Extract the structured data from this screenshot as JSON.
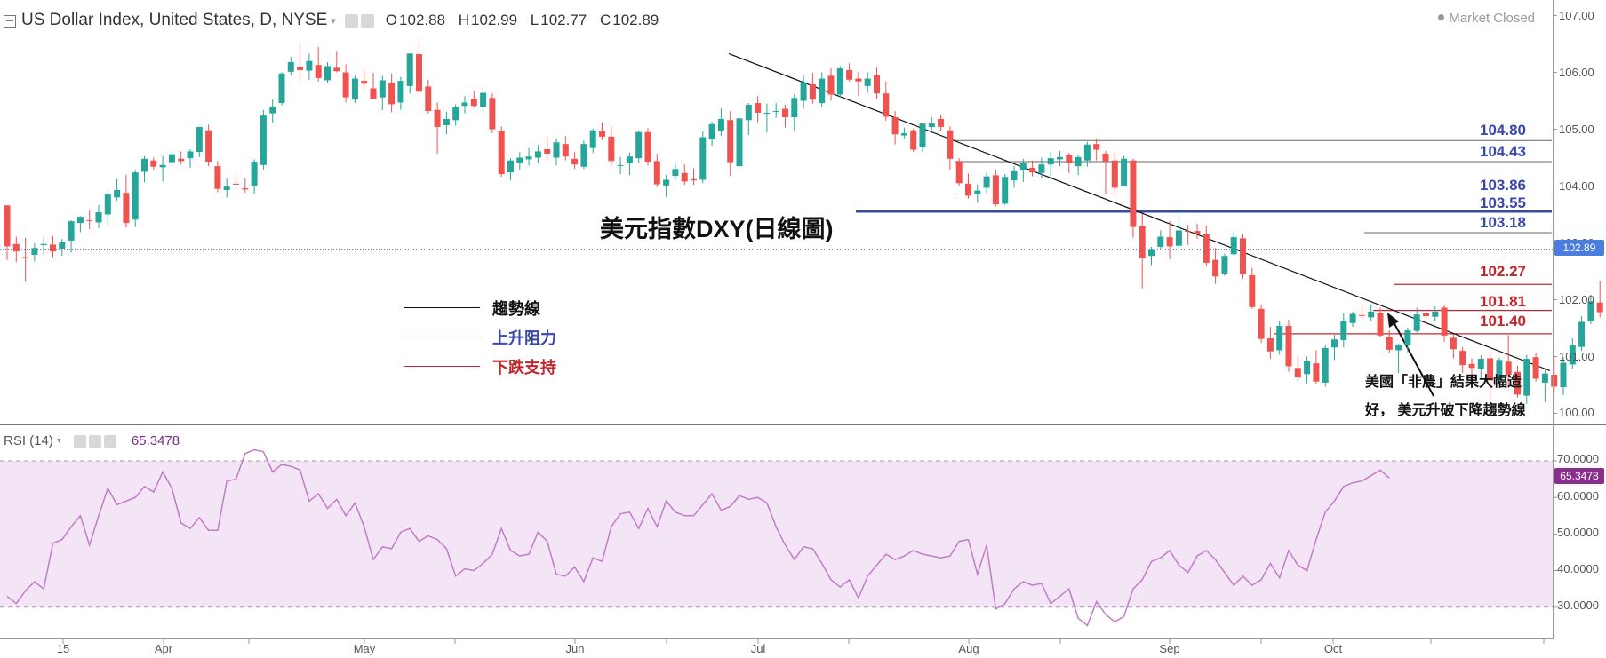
{
  "header": {
    "symbol": "US Dollar Index, United States, D, NYSE",
    "ohlc": [
      {
        "k": "O",
        "v": "102.88"
      },
      {
        "k": "H",
        "v": "102.99"
      },
      {
        "k": "L",
        "v": "102.77"
      },
      {
        "k": "C",
        "v": "102.89"
      }
    ],
    "market_status": "Market Closed"
  },
  "annotation_title": "美元指數DXY(日線圖)",
  "legend": [
    {
      "label": "趨勢線",
      "color": "#111111"
    },
    {
      "label": "上升阻力",
      "color": "#3a49a8"
    },
    {
      "label": "下跌支持",
      "color": "#c0282d"
    }
  ],
  "note": {
    "line1": "美國「非農」結果大幅造",
    "line2": "好， 美元升破下降趨勢線"
  },
  "resistance_levels": [
    "104.80",
    "104.43",
    "103.86",
    "103.55",
    "103.18"
  ],
  "support_levels": [
    "102.27",
    "101.81",
    "101.40"
  ],
  "current_price_tag": "102.89",
  "rsi": {
    "label": "RSI (14)",
    "value": "65.3478",
    "ticks": [
      "70.0000",
      "60.0000",
      "50.0000",
      "40.0000",
      "30.0000"
    ]
  },
  "price_axis_ticks": [
    "107.00",
    "106.00",
    "105.00",
    "104.00",
    "103.00",
    "102.00",
    "101.00",
    "100.00"
  ],
  "x_axis_ticks": [
    "15",
    "Apr",
    "May",
    "Jun",
    "Jul",
    "Aug",
    "Sep",
    "Oct"
  ],
  "colors": {
    "up": "#26a69a",
    "down": "#ef5350",
    "resistance": "#3a49a8",
    "support": "#c0282d",
    "rsi_line": "#c27bc9",
    "rsi_band": "#f3e5f5",
    "rsi_tag": "#8b2d8f",
    "price_tag": "#4a7dde"
  },
  "chart_data": {
    "type": "candlestick",
    "price_range": [
      99.8,
      107.1
    ],
    "ohlc_estimated": [
      [
        103.66,
        103.66,
        102.7,
        102.94
      ],
      [
        102.98,
        103.11,
        102.66,
        102.85
      ],
      [
        102.75,
        103.09,
        102.32,
        102.73
      ],
      [
        102.79,
        102.99,
        102.67,
        102.91
      ],
      [
        102.96,
        103.11,
        102.79,
        102.98
      ],
      [
        102.97,
        103.12,
        102.75,
        102.85
      ],
      [
        102.9,
        103.07,
        102.77,
        103.01
      ],
      [
        103.04,
        103.4,
        102.83,
        103.38
      ],
      [
        103.35,
        103.47,
        103.19,
        103.46
      ],
      [
        103.4,
        103.57,
        103.24,
        103.39
      ],
      [
        103.36,
        103.67,
        103.26,
        103.54
      ],
      [
        103.5,
        103.93,
        103.31,
        103.85
      ],
      [
        103.8,
        104.12,
        103.74,
        103.93
      ],
      [
        103.88,
        104.2,
        103.27,
        103.35
      ],
      [
        103.41,
        104.27,
        103.28,
        104.24
      ],
      [
        104.25,
        104.53,
        104.07,
        104.48
      ],
      [
        104.45,
        104.5,
        104.27,
        104.34
      ],
      [
        104.33,
        104.53,
        104.08,
        104.37
      ],
      [
        104.42,
        104.62,
        104.35,
        104.56
      ],
      [
        104.48,
        104.61,
        104.38,
        104.44
      ],
      [
        104.49,
        104.65,
        104.32,
        104.61
      ],
      [
        104.6,
        105.04,
        104.51,
        105.04
      ],
      [
        104.98,
        105.08,
        104.35,
        104.43
      ],
      [
        104.35,
        104.44,
        103.89,
        103.95
      ],
      [
        103.93,
        104.13,
        103.8,
        103.99
      ],
      [
        104.04,
        104.22,
        103.94,
        104.03
      ],
      [
        103.96,
        104.14,
        103.88,
        103.94
      ],
      [
        104.01,
        104.47,
        103.86,
        104.43
      ],
      [
        104.37,
        105.34,
        104.29,
        105.24
      ],
      [
        105.28,
        105.52,
        105.11,
        105.4
      ],
      [
        105.46,
        106.0,
        105.42,
        105.98
      ],
      [
        106.01,
        106.27,
        105.94,
        106.18
      ],
      [
        106.1,
        106.53,
        105.85,
        106.04
      ],
      [
        106.03,
        106.33,
        105.87,
        106.2
      ],
      [
        106.13,
        106.45,
        105.84,
        105.9
      ],
      [
        105.86,
        106.18,
        105.82,
        106.11
      ],
      [
        106.08,
        106.38,
        106.0,
        106.02
      ],
      [
        106.0,
        106.14,
        105.47,
        105.56
      ],
      [
        105.52,
        105.94,
        105.46,
        105.89
      ],
      [
        105.85,
        106.05,
        105.7,
        105.8
      ],
      [
        105.72,
        105.99,
        105.52,
        105.53
      ],
      [
        105.56,
        105.94,
        105.34,
        105.86
      ],
      [
        105.82,
        105.98,
        105.3,
        105.44
      ],
      [
        105.47,
        105.92,
        105.34,
        105.85
      ],
      [
        105.76,
        106.34,
        105.63,
        106.33
      ],
      [
        106.32,
        106.55,
        105.57,
        105.66
      ],
      [
        105.75,
        105.87,
        105.28,
        105.32
      ],
      [
        105.34,
        105.47,
        104.57,
        105.04
      ],
      [
        105.07,
        105.31,
        104.91,
        105.18
      ],
      [
        105.16,
        105.44,
        105.06,
        105.39
      ],
      [
        105.41,
        105.58,
        105.28,
        105.47
      ],
      [
        105.53,
        105.68,
        105.38,
        105.41
      ],
      [
        105.39,
        105.68,
        105.27,
        105.64
      ],
      [
        105.55,
        105.63,
        104.93,
        105.0
      ],
      [
        104.97,
        105.05,
        104.16,
        104.21
      ],
      [
        104.24,
        104.49,
        104.1,
        104.45
      ],
      [
        104.4,
        104.6,
        104.28,
        104.5
      ],
      [
        104.47,
        104.67,
        104.36,
        104.52
      ],
      [
        104.5,
        104.72,
        104.41,
        104.61
      ],
      [
        104.65,
        104.87,
        104.45,
        104.57
      ],
      [
        104.5,
        104.84,
        104.36,
        104.77
      ],
      [
        104.74,
        104.88,
        104.45,
        104.52
      ],
      [
        104.48,
        104.6,
        104.3,
        104.38
      ],
      [
        104.34,
        104.8,
        104.3,
        104.74
      ],
      [
        104.67,
        105.01,
        104.58,
        104.98
      ],
      [
        104.96,
        105.12,
        104.81,
        104.87
      ],
      [
        104.87,
        105.05,
        104.35,
        104.44
      ],
      [
        104.36,
        104.51,
        104.21,
        104.37
      ],
      [
        104.41,
        104.59,
        104.19,
        104.52
      ],
      [
        104.49,
        104.98,
        104.41,
        104.95
      ],
      [
        104.95,
        105.02,
        104.36,
        104.43
      ],
      [
        104.44,
        104.57,
        103.98,
        104.03
      ],
      [
        104.01,
        104.2,
        103.81,
        104.11
      ],
      [
        104.18,
        104.39,
        104.11,
        104.3
      ],
      [
        104.23,
        104.38,
        104.02,
        104.08
      ],
      [
        104.12,
        104.31,
        104.02,
        104.1
      ],
      [
        104.11,
        104.96,
        104.05,
        104.86
      ],
      [
        104.82,
        105.13,
        104.71,
        105.09
      ],
      [
        104.97,
        105.37,
        104.88,
        105.18
      ],
      [
        105.16,
        105.32,
        104.18,
        104.42
      ],
      [
        104.35,
        105.19,
        104.34,
        105.19
      ],
      [
        105.16,
        105.46,
        104.9,
        105.43
      ],
      [
        105.46,
        105.58,
        105.12,
        105.29
      ],
      [
        105.28,
        105.45,
        104.94,
        105.29
      ],
      [
        105.31,
        105.46,
        105.2,
        105.32
      ],
      [
        105.36,
        105.43,
        105.03,
        105.21
      ],
      [
        105.21,
        105.62,
        104.96,
        105.55
      ],
      [
        105.5,
        105.95,
        105.36,
        105.82
      ],
      [
        105.79,
        105.99,
        105.45,
        105.52
      ],
      [
        105.46,
        106.0,
        105.4,
        105.89
      ],
      [
        105.94,
        106.07,
        105.5,
        105.61
      ],
      [
        105.61,
        106.11,
        105.56,
        106.07
      ],
      [
        106.04,
        106.16,
        105.84,
        105.87
      ],
      [
        105.89,
        106.01,
        105.59,
        105.84
      ],
      [
        105.76,
        106.0,
        105.64,
        105.89
      ],
      [
        105.95,
        106.08,
        105.54,
        105.63
      ],
      [
        105.63,
        105.84,
        105.15,
        105.22
      ],
      [
        105.21,
        105.32,
        104.73,
        104.91
      ],
      [
        104.89,
        105.03,
        104.84,
        104.93
      ],
      [
        104.98,
        105.01,
        104.6,
        104.64
      ],
      [
        104.68,
        105.11,
        104.6,
        105.1
      ],
      [
        105.04,
        105.21,
        104.99,
        105.1
      ],
      [
        105.18,
        105.26,
        104.97,
        105.04
      ],
      [
        104.98,
        105.05,
        104.29,
        104.48
      ],
      [
        104.44,
        104.49,
        104.01,
        104.05
      ],
      [
        104.04,
        104.22,
        103.78,
        103.83
      ],
      [
        103.86,
        104.03,
        103.7,
        103.92
      ],
      [
        103.97,
        104.24,
        103.88,
        104.17
      ],
      [
        104.19,
        104.28,
        103.64,
        103.68
      ],
      [
        103.69,
        104.21,
        103.67,
        104.16
      ],
      [
        104.1,
        104.35,
        103.97,
        104.26
      ],
      [
        104.28,
        104.48,
        104.07,
        104.4
      ],
      [
        104.32,
        104.45,
        104.17,
        104.24
      ],
      [
        104.23,
        104.5,
        104.13,
        104.38
      ],
      [
        104.38,
        104.6,
        104.11,
        104.49
      ],
      [
        104.47,
        104.62,
        104.35,
        104.51
      ],
      [
        104.55,
        104.59,
        104.23,
        104.4
      ],
      [
        104.35,
        104.55,
        104.19,
        104.51
      ],
      [
        104.45,
        104.78,
        104.34,
        104.73
      ],
      [
        104.74,
        104.84,
        104.45,
        104.64
      ],
      [
        104.57,
        104.62,
        103.86,
        104.44
      ],
      [
        104.45,
        104.59,
        103.88,
        103.97
      ],
      [
        104.0,
        104.53,
        103.99,
        104.48
      ],
      [
        104.45,
        104.48,
        103.09,
        103.28
      ],
      [
        103.3,
        103.51,
        102.2,
        102.73
      ],
      [
        102.77,
        102.93,
        102.61,
        102.89
      ],
      [
        102.93,
        103.22,
        102.9,
        103.11
      ],
      [
        103.1,
        103.38,
        102.71,
        102.94
      ],
      [
        102.95,
        103.61,
        102.9,
        103.22
      ],
      [
        103.21,
        103.32,
        102.96,
        103.2
      ],
      [
        103.21,
        103.34,
        103.07,
        103.16
      ],
      [
        103.15,
        103.3,
        102.59,
        102.65
      ],
      [
        102.7,
        102.91,
        102.28,
        102.41
      ],
      [
        102.46,
        102.81,
        102.42,
        102.77
      ],
      [
        102.8,
        103.19,
        102.78,
        103.1
      ],
      [
        103.08,
        103.15,
        102.37,
        102.45
      ],
      [
        102.43,
        102.56,
        101.84,
        101.87
      ],
      [
        101.84,
        101.91,
        101.24,
        101.31
      ],
      [
        101.32,
        101.52,
        100.96,
        101.09
      ],
      [
        101.11,
        101.62,
        101.03,
        101.54
      ],
      [
        101.54,
        101.65,
        100.73,
        100.83
      ],
      [
        100.8,
        101.02,
        100.55,
        100.63
      ],
      [
        100.69,
        101.0,
        100.53,
        100.92
      ],
      [
        100.88,
        101.11,
        100.52,
        100.56
      ],
      [
        100.54,
        101.2,
        100.47,
        101.15
      ],
      [
        101.16,
        101.38,
        100.94,
        101.3
      ],
      [
        101.29,
        101.76,
        101.16,
        101.63
      ],
      [
        101.59,
        101.79,
        101.52,
        101.75
      ],
      [
        101.73,
        101.9,
        101.65,
        101.72
      ],
      [
        101.69,
        101.92,
        101.62,
        101.79
      ],
      [
        101.76,
        101.86,
        101.35,
        101.37
      ],
      [
        101.34,
        101.46,
        101.07,
        101.12
      ],
      [
        101.11,
        101.23,
        100.71,
        101.2
      ],
      [
        101.2,
        101.51,
        101.07,
        101.46
      ],
      [
        101.45,
        101.86,
        101.42,
        101.74
      ],
      [
        101.76,
        101.81,
        101.5,
        101.71
      ],
      [
        101.7,
        101.88,
        101.61,
        101.79
      ],
      [
        101.86,
        101.9,
        101.26,
        101.37
      ],
      [
        101.33,
        101.39,
        100.97,
        101.13
      ],
      [
        101.1,
        101.17,
        100.71,
        100.85
      ],
      [
        100.87,
        100.97,
        100.65,
        100.8
      ],
      [
        100.78,
        101.02,
        100.6,
        100.96
      ],
      [
        100.97,
        101.08,
        100.22,
        100.58
      ],
      [
        100.58,
        100.98,
        100.53,
        100.94
      ],
      [
        100.91,
        101.38,
        100.47,
        100.68
      ],
      [
        100.73,
        100.84,
        100.28,
        100.33
      ],
      [
        100.31,
        101.03,
        100.17,
        100.96
      ],
      [
        100.99,
        101.06,
        100.56,
        100.61
      ],
      [
        100.54,
        100.77,
        100.2,
        100.7
      ],
      [
        100.68,
        101.0,
        100.36,
        100.47
      ],
      [
        100.46,
        100.99,
        100.32,
        100.89
      ],
      [
        100.86,
        101.32,
        100.79,
        101.2
      ],
      [
        101.17,
        101.71,
        101.1,
        101.61
      ],
      [
        101.62,
        102.09,
        101.57,
        101.97
      ],
      [
        101.95,
        102.33,
        101.69,
        101.78
      ],
      [
        101.78,
        102.52,
        101.74,
        102.5
      ],
      [
        102.46,
        102.61,
        102.25,
        102.51
      ],
      [
        102.5,
        102.66,
        102.41,
        102.58
      ],
      [
        102.55,
        102.92,
        102.55,
        102.92
      ],
      [
        102.91,
        103.2,
        102.87,
        103.02
      ],
      [
        102.88,
        102.99,
        102.77,
        102.89
      ]
    ],
    "rsi14_estimated": [
      33.0,
      31.0,
      34.5,
      37.0,
      35.0,
      47.5,
      48.5,
      52.0,
      55.0,
      47.0,
      55.0,
      62.5,
      58.0,
      59.0,
      60.0,
      63.0,
      61.5,
      67.0,
      62.5,
      53.0,
      51.5,
      54.5,
      51.0,
      51.0,
      64.5,
      65.0,
      72.0,
      73.0,
      72.5,
      67.0,
      69.0,
      68.5,
      67.5,
      59.0,
      61.0,
      57.0,
      59.5,
      55.0,
      58.5,
      52.0,
      43.0,
      46.5,
      46.0,
      50.5,
      51.5,
      48.0,
      49.5,
      48.5,
      46.0,
      38.5,
      40.5,
      40.0,
      42.0,
      44.5,
      51.5,
      45.5,
      44.0,
      44.5,
      50.5,
      48.0,
      39.0,
      38.5,
      41.0,
      37.0,
      43.5,
      42.5,
      52.0,
      55.5,
      56.0,
      51.5,
      57.0,
      52.0,
      59.0,
      56.0,
      55.0,
      55.0,
      58.0,
      61.0,
      56.5,
      57.5,
      60.5,
      59.5,
      60.0,
      58.5,
      52.0,
      47.0,
      43.0,
      46.5,
      46.0,
      42.0,
      37.5,
      35.5,
      37.5,
      32.5,
      38.5,
      41.5,
      44.5,
      43.0,
      44.0,
      45.5,
      44.5,
      44.0,
      43.5,
      44.0,
      48.0,
      48.5,
      39.0,
      47.0,
      29.5,
      31.0,
      35.0,
      37.0,
      36.0,
      36.5,
      31.0,
      33.0,
      35.0,
      27.0,
      25.0,
      31.5,
      28.0,
      26.0,
      27.5,
      35.0,
      37.5,
      42.5,
      43.5,
      45.5,
      41.5,
      39.5,
      44.0,
      45.5,
      43.0,
      39.5,
      36.0,
      38.5,
      36.0,
      37.5,
      42.0,
      38.0,
      45.5,
      41.5,
      40.0,
      48.5,
      56.0,
      59.0,
      63.0,
      64.0,
      64.5,
      66.0,
      67.5,
      65.3
    ]
  }
}
